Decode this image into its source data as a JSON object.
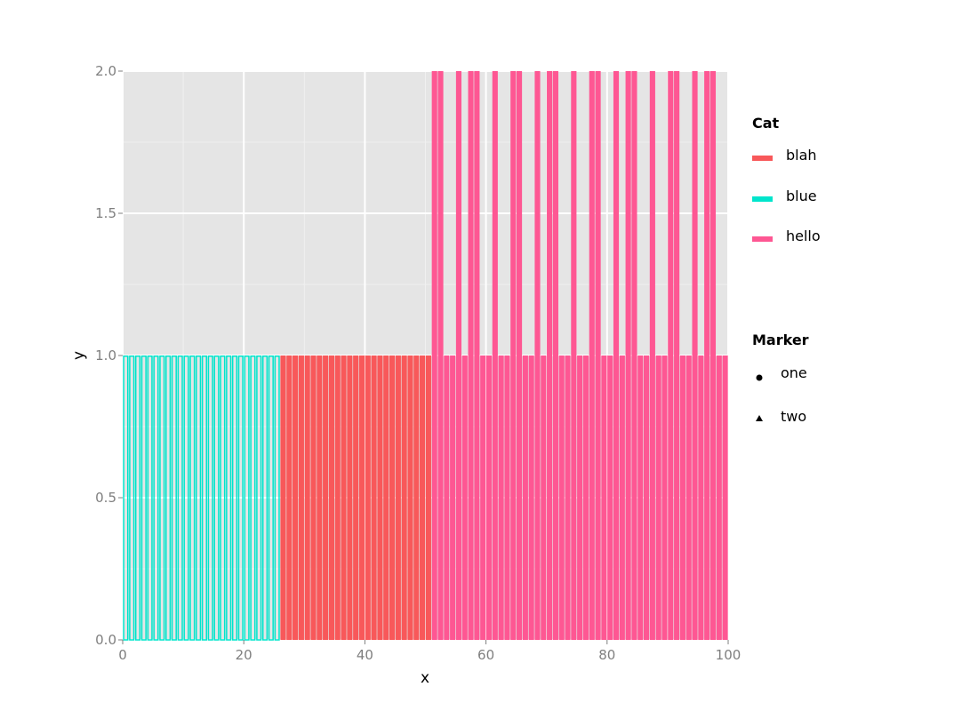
{
  "chart_data": {
    "type": "bar",
    "xlabel": "x",
    "ylabel": "y",
    "xlim": [
      0,
      100
    ],
    "ylim": [
      0,
      2
    ],
    "xticks": [
      "0",
      "20",
      "40",
      "60",
      "80",
      "100"
    ],
    "yticks": [
      "0.0",
      "0.5",
      "1.0",
      "1.5",
      "2.0"
    ],
    "grid": true,
    "background": "#e5e5e5",
    "legend_position": "right",
    "bar_width": 0.9,
    "series": [
      {
        "name": "blue",
        "color": "#00e5cc",
        "fill": "none",
        "x": [
          0,
          1,
          2,
          3,
          4,
          5,
          6,
          7,
          8,
          9,
          10,
          11,
          12,
          13,
          14,
          15,
          16,
          17,
          18,
          19,
          20,
          21,
          22,
          23,
          24,
          25
        ],
        "y": [
          1,
          1,
          1,
          1,
          1,
          1,
          1,
          1,
          1,
          1,
          1,
          1,
          1,
          1,
          1,
          1,
          1,
          1,
          1,
          1,
          1,
          1,
          1,
          1,
          1,
          1
        ]
      },
      {
        "name": "blah",
        "color": "#f8585a",
        "fill": "solid",
        "x": [
          26,
          27,
          28,
          29,
          30,
          31,
          32,
          33,
          34,
          35,
          36,
          37,
          38,
          39,
          40,
          41,
          42,
          43,
          44,
          45,
          46,
          47,
          48,
          49,
          50
        ],
        "y": [
          1,
          1,
          1,
          1,
          1,
          1,
          1,
          1,
          1,
          1,
          1,
          1,
          1,
          1,
          1,
          1,
          1,
          1,
          1,
          1,
          1,
          1,
          1,
          1,
          1
        ]
      },
      {
        "name": "hello",
        "color": "#fe5793",
        "fill": "solid",
        "x": [
          51,
          52,
          53,
          54,
          55,
          56,
          57,
          58,
          59,
          60,
          61,
          62,
          63,
          64,
          65,
          66,
          67,
          68,
          69,
          70,
          71,
          72,
          73,
          74,
          75,
          76,
          77,
          78,
          79,
          80,
          81,
          82,
          83,
          84,
          85,
          86,
          87,
          88,
          89,
          90,
          91,
          92,
          93,
          94,
          95,
          96,
          97,
          98,
          99
        ],
        "y": [
          2,
          2,
          1,
          1,
          2,
          1,
          2,
          2,
          1,
          1,
          2,
          1,
          1,
          2,
          2,
          1,
          1,
          2,
          1,
          2,
          2,
          1,
          1,
          2,
          1,
          1,
          2,
          2,
          1,
          1,
          2,
          1,
          2,
          2,
          1,
          1,
          2,
          1,
          1,
          2,
          2,
          1,
          1,
          2,
          1,
          2,
          2,
          1,
          1
        ]
      }
    ],
    "legends": [
      {
        "title": "Cat",
        "items": [
          {
            "label": "blah",
            "color": "#f8585a",
            "shape": "bar"
          },
          {
            "label": "blue",
            "color": "#00e5cc",
            "shape": "bar"
          },
          {
            "label": "hello",
            "color": "#fe5793",
            "shape": "bar"
          }
        ]
      },
      {
        "title": "Marker",
        "items": [
          {
            "label": "one",
            "color": "#000000",
            "shape": "circle"
          },
          {
            "label": "two",
            "color": "#000000",
            "shape": "triangle"
          }
        ]
      }
    ]
  }
}
